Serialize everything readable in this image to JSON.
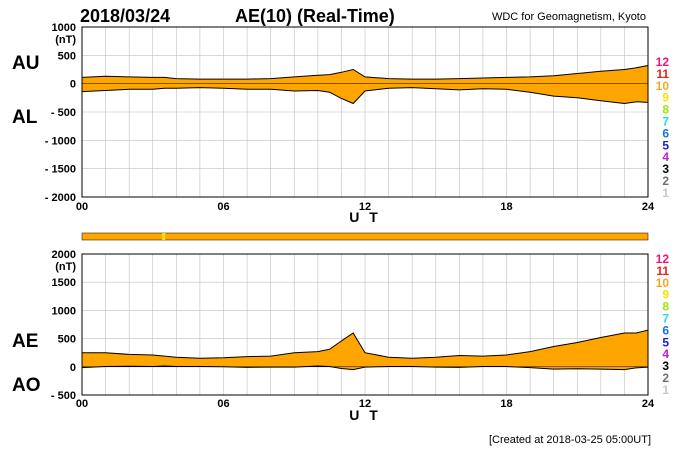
{
  "header": {
    "date": "2018/03/24",
    "title": "AE(10) (Real-Time)",
    "source": "WDC for Geomagnetism, Kyoto"
  },
  "footer": {
    "created": "[Created at 2018-03-25 05:00UT]"
  },
  "legend": {
    "items": [
      {
        "label": "12",
        "color": "#e8157a"
      },
      {
        "label": "11",
        "color": "#e8241a"
      },
      {
        "label": "10",
        "color": "#f5a623"
      },
      {
        "label": "9",
        "color": "#f2e600"
      },
      {
        "label": "8",
        "color": "#9de800"
      },
      {
        "label": "7",
        "color": "#27d9e8"
      },
      {
        "label": "6",
        "color": "#1a6fe8"
      },
      {
        "label": "5",
        "color": "#1c1cc9"
      },
      {
        "label": "4",
        "color": "#c020d0"
      },
      {
        "label": "3",
        "color": "#000000"
      },
      {
        "label": "2",
        "color": "#707070"
      },
      {
        "label": "1",
        "color": "#c8c8c8"
      }
    ]
  },
  "chart_data": [
    {
      "type": "area",
      "name": "AU/AL",
      "upper_label": "AU",
      "lower_label": "AL",
      "ylabel": "(nT)",
      "xlabel": "U T",
      "xlim": [
        0,
        24
      ],
      "ylim": [
        -2000,
        1000
      ],
      "yticks": [
        1000,
        500,
        0,
        -500,
        -1000,
        -1500,
        -2000
      ],
      "ytick_labels": [
        "1000",
        "500",
        "0",
        "- 500",
        "- 1000",
        "- 1500",
        "- 2000"
      ],
      "xticks": [
        0,
        6,
        12,
        18,
        24
      ],
      "xtick_labels": [
        "00",
        "06",
        "12",
        "18",
        "24"
      ],
      "fill_color": "#ffa500",
      "x": [
        0,
        1,
        2,
        3,
        3.5,
        4,
        5,
        6,
        7,
        8,
        9,
        10,
        10.5,
        11,
        11.5,
        12,
        13,
        14,
        15,
        16,
        17,
        18,
        19,
        20,
        21,
        22,
        23,
        23.5,
        24
      ],
      "series": [
        {
          "name": "AU",
          "values": [
            110,
            130,
            120,
            110,
            110,
            90,
            80,
            80,
            80,
            90,
            120,
            150,
            160,
            200,
            250,
            120,
            90,
            80,
            80,
            90,
            100,
            110,
            120,
            140,
            180,
            220,
            250,
            280,
            320
          ]
        },
        {
          "name": "AL",
          "values": [
            -140,
            -120,
            -100,
            -100,
            -80,
            -80,
            -70,
            -80,
            -100,
            -100,
            -130,
            -120,
            -150,
            -260,
            -350,
            -130,
            -80,
            -70,
            -90,
            -110,
            -90,
            -100,
            -150,
            -220,
            -250,
            -300,
            -350,
            -320,
            -330
          ]
        }
      ]
    },
    {
      "type": "area",
      "name": "AE/AO",
      "upper_label": "AE",
      "lower_label": "AO",
      "ylabel": "(nT)",
      "xlabel": "U T",
      "xlim": [
        0,
        24
      ],
      "ylim": [
        -500,
        2000
      ],
      "yticks": [
        2000,
        1500,
        1000,
        500,
        0,
        -500
      ],
      "ytick_labels": [
        "2000",
        "1500",
        "1000",
        "500",
        "0",
        "- 500"
      ],
      "xticks": [
        0,
        6,
        12,
        18,
        24
      ],
      "xtick_labels": [
        "00",
        "06",
        "12",
        "18",
        "24"
      ],
      "fill_color": "#ffa500",
      "x": [
        0,
        1,
        2,
        3,
        3.5,
        4,
        5,
        6,
        7,
        8,
        9,
        10,
        10.5,
        11,
        11.5,
        12,
        13,
        14,
        15,
        16,
        17,
        18,
        19,
        20,
        21,
        22,
        23,
        23.5,
        24
      ],
      "series": [
        {
          "name": "AE",
          "values": [
            250,
            250,
            220,
            210,
            190,
            170,
            150,
            160,
            180,
            190,
            250,
            270,
            310,
            460,
            600,
            250,
            170,
            150,
            170,
            200,
            190,
            210,
            270,
            360,
            430,
            520,
            600,
            600,
            650
          ]
        },
        {
          "name": "AO",
          "values": [
            -15,
            5,
            10,
            5,
            15,
            5,
            5,
            0,
            -10,
            -5,
            -5,
            15,
            5,
            -30,
            -50,
            -5,
            5,
            5,
            -5,
            -10,
            5,
            5,
            -15,
            -40,
            -35,
            -40,
            -50,
            -20,
            -5
          ]
        }
      ]
    }
  ],
  "station_strip": {
    "color": "#ffa500",
    "highlight_color": "#f2e600",
    "highlight_hour": 3.4
  }
}
